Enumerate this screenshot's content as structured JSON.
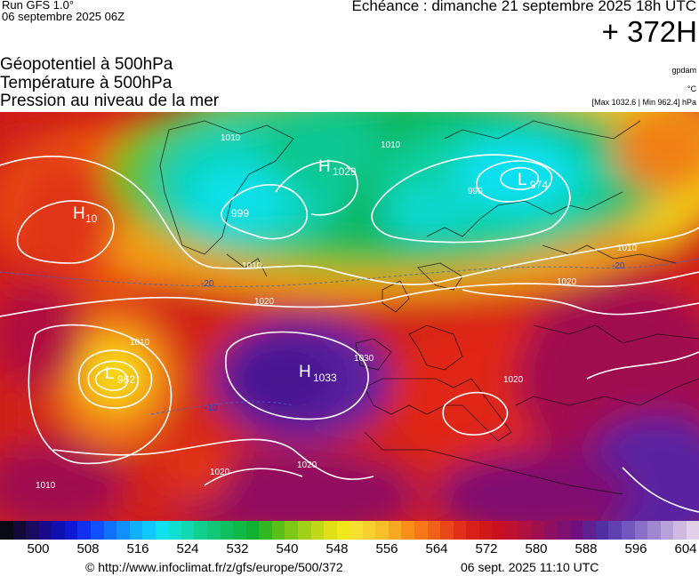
{
  "header": {
    "run": "Run GFS 1.0°",
    "run_date": "06 septembre 2025 06Z",
    "valid": "Echéance : dimanche 21 septembre 2025 18h UTC",
    "lead": "+ 372H",
    "titles": [
      "Géopotentiel à 500hPa",
      "Température à 500hPa",
      "Pression au niveau de la mer"
    ],
    "units_gpdam": "gpdam",
    "units_celsius": "°C",
    "max_min": "[Max 1032.6 | Min 962.4] hPa"
  },
  "map": {
    "pressure_centers": [
      {
        "type": "H",
        "value": "1029"
      },
      {
        "type": "L",
        "value": "974"
      },
      {
        "type": "L",
        "value": "999"
      },
      {
        "type": "H",
        "value": "1033"
      },
      {
        "type": "L",
        "value": "962"
      },
      {
        "type": "H",
        "value": "10"
      }
    ],
    "isobar_labels": [
      "1010",
      "1020",
      "1030",
      "990",
      "-20",
      "-10"
    ],
    "colors": {
      "low_core": "#20d8e8",
      "mid": "#10c060",
      "warm": "#e02010",
      "high_core": "#5a20a0"
    }
  },
  "colorbar": {
    "ticks": [
      "500",
      "508",
      "516",
      "524",
      "532",
      "540",
      "548",
      "556",
      "564",
      "572",
      "580",
      "588",
      "596",
      "604"
    ],
    "colors": [
      "#0a0a14",
      "#140a38",
      "#1a0a60",
      "#1a0a88",
      "#1010b0",
      "#1018d8",
      "#1030f0",
      "#1050ff",
      "#1070ff",
      "#1090ff",
      "#10b0ff",
      "#10c8ff",
      "#10e0f0",
      "#10e0d0",
      "#10d8b0",
      "#10d090",
      "#10c878",
      "#10c060",
      "#10b848",
      "#10b030",
      "#30b820",
      "#58c018",
      "#80c818",
      "#a0d018",
      "#c0d818",
      "#e0e018",
      "#f0e818",
      "#f8e030",
      "#f8d030",
      "#f8c028",
      "#f8a820",
      "#f89018",
      "#f87818",
      "#f06018",
      "#e84818",
      "#e03018",
      "#d82018",
      "#d01818",
      "#c81020",
      "#c01030",
      "#b01040",
      "#a01050",
      "#901060",
      "#801070",
      "#701080",
      "#602090",
      "#5030a0",
      "#6040b0",
      "#7058c0",
      "#8870c8",
      "#a088d0",
      "#b8a0d8",
      "#d0b8e0",
      "#e0d0e8"
    ]
  },
  "footer": {
    "url": "© http://www.infoclimat.fr/z/gfs/europe/500/372",
    "date": "06 sept. 2025 11:10 UTC"
  }
}
